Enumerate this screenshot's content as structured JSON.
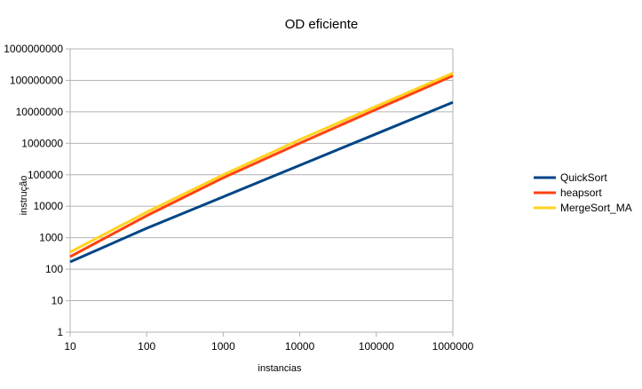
{
  "chart_data": {
    "type": "line",
    "title": "OD eficiente",
    "xlabel": "instancias",
    "ylabel": "instrução",
    "x_scale": "log",
    "y_scale": "log",
    "xlim": [
      10,
      1000000
    ],
    "ylim": [
      1,
      1000000000
    ],
    "x": [
      10,
      100,
      1000,
      10000,
      100000,
      1000000
    ],
    "x_tick_labels": [
      "10",
      "100",
      "1000",
      "10000",
      "100000",
      "1000000"
    ],
    "y_tick_labels": [
      "1",
      "10",
      "100",
      "1000",
      "10000",
      "100000",
      "1000000",
      "10000000",
      "100000000",
      "1000000000"
    ],
    "grid": "horizontal",
    "legend_position": "right",
    "series": [
      {
        "name": "QuickSort",
        "color": "#004586",
        "values": [
          170,
          2000,
          20000,
          200000,
          2000000,
          20000000
        ]
      },
      {
        "name": "heapsort",
        "color": "#ff420e",
        "values": [
          250,
          5000,
          80000,
          1000000,
          12000000,
          140000000
        ]
      },
      {
        "name": "MergeSort_MA",
        "color": "#ffd320",
        "values": [
          350,
          6500,
          100000,
          1300000,
          15000000,
          170000000
        ]
      }
    ]
  }
}
